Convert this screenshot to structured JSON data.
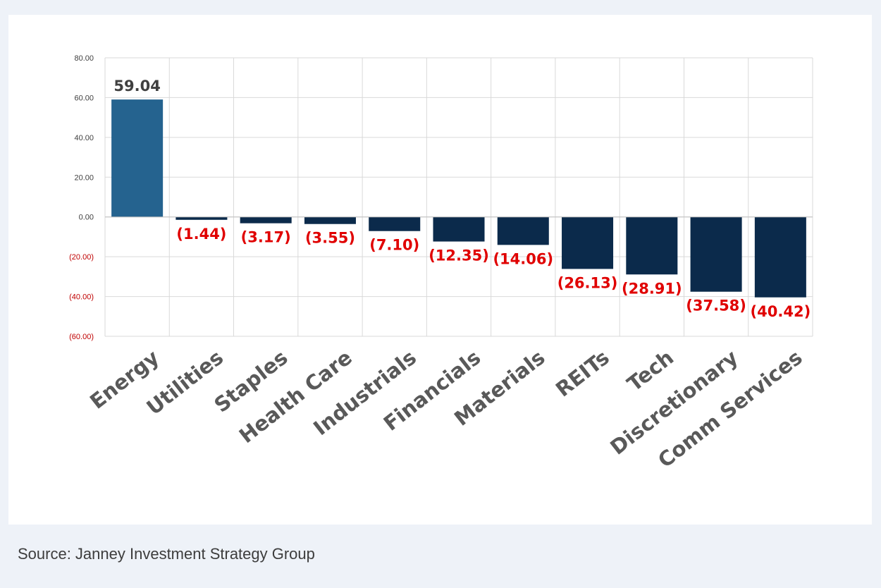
{
  "chart_data": {
    "type": "bar",
    "categories": [
      "Energy",
      "Utilities",
      "Staples",
      "Health Care",
      "Industrials",
      "Financials",
      "Materials",
      "REITs",
      "Tech",
      "Discretionary",
      "Comm Services"
    ],
    "values": [
      59.04,
      -1.44,
      -3.17,
      -3.55,
      -7.1,
      -12.35,
      -14.06,
      -26.13,
      -28.91,
      -37.58,
      -40.42
    ],
    "data_labels": [
      "59.04",
      "(1.44)",
      "(3.17)",
      "(3.55)",
      "(7.10)",
      "(12.35)",
      "(14.06)",
      "(26.13)",
      "(28.91)",
      "(37.58)",
      "(40.42)"
    ],
    "ylim": [
      -60,
      80
    ],
    "yticks": [
      80,
      60,
      40,
      20,
      0,
      -20,
      -40,
      -60
    ],
    "ytick_labels": [
      "80.00",
      "60.00",
      "40.00",
      "20.00",
      "0.00",
      "(20.00)",
      "(40.00)",
      "(60.00)"
    ],
    "title": "",
    "xlabel": "",
    "ylabel": "",
    "grid": true,
    "colors": {
      "positive_bar": "#25638f",
      "negative_bar": "#0b2a4b",
      "positive_label": "#404040",
      "negative_label": "#e00000",
      "positive_tick": "#404040",
      "negative_tick": "#c00000",
      "grid": "#d9d9d9"
    }
  },
  "source": "Source: Janney Investment Strategy Group"
}
